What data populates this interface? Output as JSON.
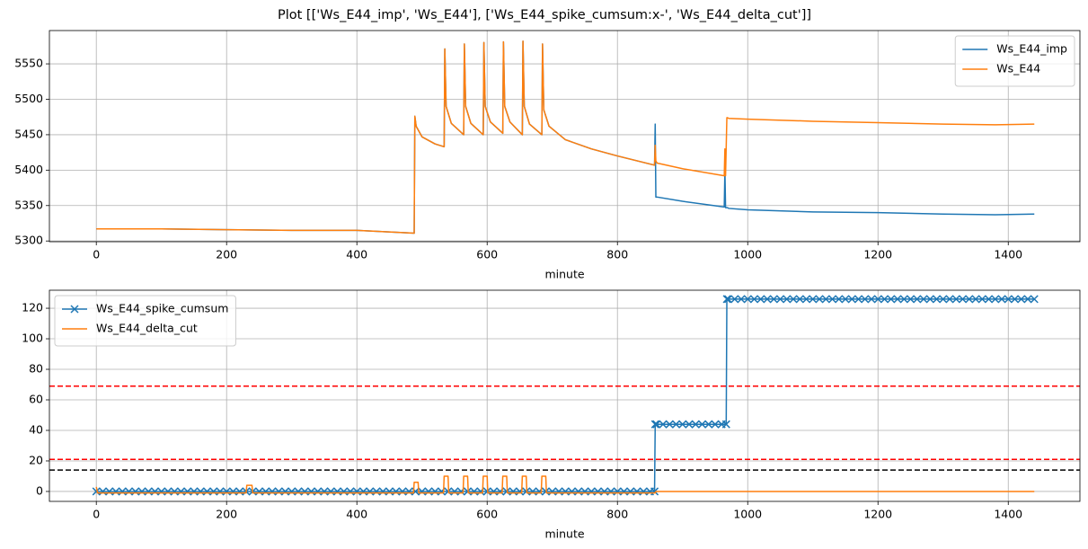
{
  "title": "Plot [['Ws_E44_imp', 'Ws_E44'], ['Ws_E44_spike_cumsum:x-', 'Ws_E44_delta_cut']]",
  "chart_data": [
    {
      "type": "line",
      "xlabel": "minute",
      "legend": "upper right",
      "grid": true,
      "xlim": [
        -72,
        1510
      ],
      "xticks": [
        0,
        200,
        400,
        600,
        800,
        1000,
        1200,
        1400
      ],
      "ylim": [
        5299,
        5597
      ],
      "yticks": [
        5300,
        5350,
        5400,
        5450,
        5500,
        5550
      ],
      "x": [
        0,
        100,
        200,
        300,
        400,
        488,
        489,
        491,
        500,
        520,
        534,
        535,
        537,
        545,
        564,
        565,
        567,
        575,
        594,
        595,
        597,
        605,
        624,
        625,
        627,
        635,
        654,
        655,
        657,
        665,
        684,
        685,
        687,
        695,
        720,
        760,
        800,
        857,
        858,
        859,
        861,
        900,
        964,
        965,
        966,
        968,
        969,
        971,
        1000,
        1100,
        1200,
        1300,
        1380,
        1440
      ],
      "series": [
        {
          "name": "Ws_E44_imp",
          "color": "#1f77b4",
          "values": [
            5317,
            5317,
            5316,
            5315,
            5315,
            5311,
            5476,
            5462,
            5447,
            5437,
            5433,
            5571,
            5490,
            5466,
            5450,
            5578,
            5490,
            5466,
            5450,
            5580,
            5490,
            5468,
            5452,
            5581,
            5490,
            5468,
            5450,
            5582,
            5490,
            5465,
            5450,
            5578,
            5485,
            5462,
            5443,
            5430,
            5420,
            5407,
            5465,
            5362,
            5362,
            5356,
            5348,
            5400,
            5347,
            5347,
            5347,
            5346,
            5344,
            5341,
            5340,
            5338,
            5337,
            5338
          ]
        },
        {
          "name": "Ws_E44",
          "color": "#ff7f0e",
          "values": [
            5317,
            5317,
            5316,
            5315,
            5315,
            5311,
            5476,
            5462,
            5447,
            5437,
            5433,
            5571,
            5490,
            5466,
            5450,
            5578,
            5490,
            5466,
            5450,
            5580,
            5490,
            5468,
            5452,
            5581,
            5490,
            5468,
            5450,
            5582,
            5490,
            5465,
            5450,
            5578,
            5485,
            5462,
            5443,
            5430,
            5420,
            5407,
            5435,
            5413,
            5410,
            5402,
            5392,
            5430,
            5392,
            5474,
            5474,
            5473,
            5472,
            5469,
            5467,
            5465,
            5464,
            5465
          ]
        }
      ]
    },
    {
      "type": "line",
      "xlabel": "minute",
      "legend": "upper left",
      "grid": true,
      "xlim": [
        -72,
        1510
      ],
      "xticks": [
        0,
        200,
        400,
        600,
        800,
        1000,
        1200,
        1400
      ],
      "ylim": [
        -6.5,
        131.8
      ],
      "yticks": [
        0,
        20,
        40,
        60,
        80,
        100,
        120
      ],
      "hlines": [
        {
          "value": 69,
          "color": "#ff0000"
        },
        {
          "value": 21,
          "color": "#ff0000"
        },
        {
          "value": 14,
          "color": "#000000"
        }
      ],
      "series": [
        {
          "name": "Ws_E44_spike_cumsum",
          "color": "#1f77b4",
          "marker": "x",
          "x": [
            0,
            10,
            20,
            30,
            40,
            50,
            60,
            70,
            80,
            90,
            100,
            110,
            120,
            130,
            140,
            150,
            160,
            170,
            180,
            190,
            200,
            210,
            220,
            230,
            240,
            250,
            260,
            270,
            280,
            290,
            300,
            310,
            320,
            330,
            340,
            350,
            360,
            370,
            380,
            390,
            400,
            410,
            420,
            430,
            440,
            450,
            460,
            470,
            480,
            490,
            500,
            510,
            520,
            530,
            540,
            550,
            560,
            570,
            580,
            590,
            600,
            610,
            620,
            630,
            640,
            650,
            660,
            670,
            680,
            690,
            700,
            710,
            720,
            730,
            740,
            750,
            760,
            770,
            780,
            790,
            800,
            810,
            820,
            830,
            840,
            850,
            857,
            858,
            860,
            870,
            880,
            890,
            900,
            910,
            920,
            930,
            940,
            950,
            960,
            967,
            968,
            970,
            980,
            990,
            1000,
            1010,
            1020,
            1030,
            1040,
            1050,
            1060,
            1070,
            1080,
            1090,
            1100,
            1110,
            1120,
            1130,
            1140,
            1150,
            1160,
            1170,
            1180,
            1190,
            1200,
            1210,
            1220,
            1230,
            1240,
            1250,
            1260,
            1270,
            1280,
            1290,
            1300,
            1310,
            1320,
            1330,
            1340,
            1350,
            1360,
            1370,
            1380,
            1390,
            1400,
            1410,
            1420,
            1430,
            1440
          ],
          "values": [
            0,
            0,
            0,
            0,
            0,
            0,
            0,
            0,
            0,
            0,
            0,
            0,
            0,
            0,
            0,
            0,
            0,
            0,
            0,
            0,
            0,
            0,
            0,
            0,
            0,
            0,
            0,
            0,
            0,
            0,
            0,
            0,
            0,
            0,
            0,
            0,
            0,
            0,
            0,
            0,
            0,
            0,
            0,
            0,
            0,
            0,
            0,
            0,
            0,
            0,
            0,
            0,
            0,
            0,
            0,
            0,
            0,
            0,
            0,
            0,
            0,
            0,
            0,
            0,
            0,
            0,
            0,
            0,
            0,
            0,
            0,
            0,
            0,
            0,
            0,
            0,
            0,
            0,
            0,
            0,
            0,
            0,
            0,
            0,
            0,
            0,
            0,
            44,
            44,
            44,
            44,
            44,
            44,
            44,
            44,
            44,
            44,
            44,
            44,
            44,
            126,
            126,
            126,
            126,
            126,
            126,
            126,
            126,
            126,
            126,
            126,
            126,
            126,
            126,
            126,
            126,
            126,
            126,
            126,
            126,
            126,
            126,
            126,
            126,
            126,
            126,
            126,
            126,
            126,
            126,
            126,
            126,
            126,
            126,
            126,
            126,
            126,
            126,
            126,
            126,
            126,
            126,
            126,
            126,
            126,
            126,
            126,
            126,
            126
          ]
        },
        {
          "name": "Ws_E44_delta_cut",
          "color": "#ff7f0e",
          "x": [
            0,
            2,
            230,
            231,
            239,
            240,
            487,
            488,
            494,
            495,
            533,
            534,
            540,
            541,
            563,
            564,
            570,
            571,
            593,
            594,
            600,
            601,
            623,
            624,
            630,
            631,
            653,
            654,
            660,
            661,
            683,
            684,
            690,
            691,
            858,
            859,
            1440
          ],
          "values": [
            3,
            -1,
            -1,
            4,
            4,
            -1,
            -1,
            6,
            6,
            -1,
            -1,
            10,
            10,
            -1,
            -1,
            10,
            10,
            -1,
            -1,
            10,
            10,
            -1,
            -1,
            10,
            10,
            -1,
            -1,
            10,
            10,
            -1,
            -1,
            10,
            10,
            -1,
            -1,
            0,
            0
          ]
        }
      ]
    }
  ]
}
